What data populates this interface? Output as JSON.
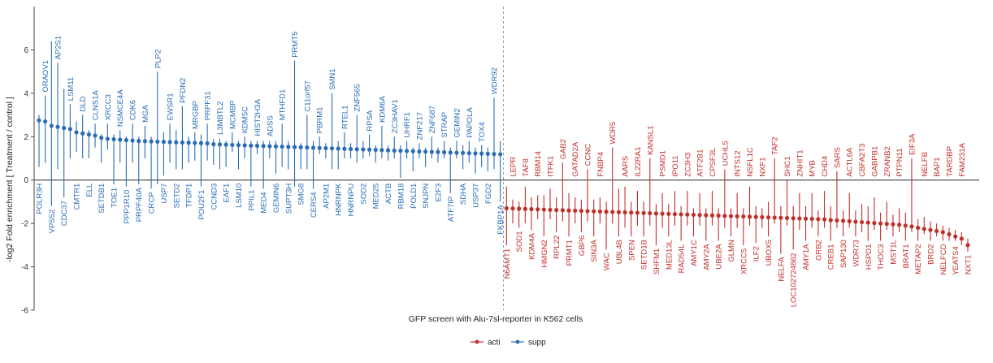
{
  "chart_data": {
    "type": "scatter",
    "xlabel": "GFP screen with Alu-7sl-reporter in K562 cells",
    "ylabel": "-log2 Fold enrichment [ Treatment / control ]",
    "ylim": [
      -6,
      8
    ],
    "yticks": [
      -6,
      -4,
      -2,
      0,
      2,
      4,
      6
    ],
    "grid": false,
    "legend_position": "bottom-center",
    "colors": {
      "acti": "#c0302b",
      "supp": "#2a6db5",
      "zero_line": "#555555",
      "divider": "#999999"
    },
    "series": [
      {
        "name": "supp",
        "points": [
          {
            "label": "POLR3H",
            "y": 2.75,
            "lo": 0.6,
            "hi": 3.0
          },
          {
            "label": "ORAOV1",
            "y": 2.7,
            "lo": 0.8,
            "hi": 3.9
          },
          {
            "label": "VPS52",
            "y": 2.5,
            "lo": -1.2,
            "hi": 6.4
          },
          {
            "label": "AP2S1",
            "y": 2.45,
            "lo": 0.5,
            "hi": 5.4
          },
          {
            "label": "CDC37",
            "y": 2.4,
            "lo": -0.8,
            "hi": 4.2
          },
          {
            "label": "LSM11",
            "y": 2.35,
            "lo": 1.0,
            "hi": 3.5
          },
          {
            "label": "CMTR1",
            "y": 2.2,
            "lo": 1.3,
            "hi": 2.7
          },
          {
            "label": "DLD",
            "y": 2.15,
            "lo": 1.0,
            "hi": 3.0
          },
          {
            "label": "ELL",
            "y": 2.1,
            "lo": 1.0,
            "hi": 2.3
          },
          {
            "label": "CLNS1A",
            "y": 2.05,
            "lo": 1.5,
            "hi": 2.6
          },
          {
            "label": "SETDB1",
            "y": 1.95,
            "lo": 0.8,
            "hi": 2.1
          },
          {
            "label": "XRCC3",
            "y": 1.9,
            "lo": 1.4,
            "hi": 2.6
          },
          {
            "label": "TOE1",
            "y": 1.88,
            "lo": -0.2,
            "hi": 2.1
          },
          {
            "label": "NSMCE4A",
            "y": 1.86,
            "lo": 0.8,
            "hi": 2.3
          },
          {
            "label": "PPP1R10",
            "y": 1.84,
            "lo": -0.3,
            "hi": 2.0
          },
          {
            "label": "CDK6",
            "y": 1.82,
            "lo": 0.8,
            "hi": 2.6
          },
          {
            "label": "PRPF40A",
            "y": 1.8,
            "lo": -0.2,
            "hi": 2.0
          },
          {
            "label": "MGA",
            "y": 1.79,
            "lo": 1.0,
            "hi": 2.5
          },
          {
            "label": "CRCP",
            "y": 1.78,
            "lo": -0.4,
            "hi": 2.0
          },
          {
            "label": "PLP2",
            "y": 1.77,
            "lo": -0.2,
            "hi": 5.0
          },
          {
            "label": "USP7",
            "y": 1.76,
            "lo": 0.2,
            "hi": 2.2
          },
          {
            "label": "EWSR1",
            "y": 1.75,
            "lo": 0.8,
            "hi": 2.6
          },
          {
            "label": "SETD2",
            "y": 1.74,
            "lo": 0.5,
            "hi": 2.3
          },
          {
            "label": "PFDN2",
            "y": 1.73,
            "lo": 0.5,
            "hi": 3.4
          },
          {
            "label": "TFDP1",
            "y": 1.72,
            "lo": 0.8,
            "hi": 2.0
          },
          {
            "label": "MRGBP",
            "y": 1.71,
            "lo": 0.9,
            "hi": 2.2
          },
          {
            "label": "POU2F1",
            "y": 1.7,
            "lo": -0.3,
            "hi": 2.1
          },
          {
            "label": "PRPF31",
            "y": 1.69,
            "lo": 0.9,
            "hi": 2.6
          },
          {
            "label": "CCND3",
            "y": 1.65,
            "lo": 0.7,
            "hi": 1.9
          },
          {
            "label": "L3MBTL2",
            "y": 1.64,
            "lo": 0.5,
            "hi": 1.9
          },
          {
            "label": "EAF1",
            "y": 1.63,
            "lo": 0.6,
            "hi": 1.8
          },
          {
            "label": "MCMBP",
            "y": 1.62,
            "lo": 1.3,
            "hi": 2.2
          },
          {
            "label": "LSM10",
            "y": 1.61,
            "lo": 0.5,
            "hi": 1.8
          },
          {
            "label": "KDM5C",
            "y": 1.6,
            "lo": 1.0,
            "hi": 2.0
          },
          {
            "label": "PPIL1",
            "y": 1.59,
            "lo": -0.3,
            "hi": 1.8
          },
          {
            "label": "HIST2H3A",
            "y": 1.58,
            "lo": 1.2,
            "hi": 1.8
          },
          {
            "label": "MED4",
            "y": 1.57,
            "lo": -0.4,
            "hi": 1.8
          },
          {
            "label": "ADSS",
            "y": 1.56,
            "lo": 1.0,
            "hi": 1.8
          },
          {
            "label": "GEMIN6",
            "y": 1.55,
            "lo": 0.3,
            "hi": 1.8
          },
          {
            "label": "MTHFD1",
            "y": 1.54,
            "lo": 0.6,
            "hi": 2.6
          },
          {
            "label": "SUPT3H",
            "y": 1.53,
            "lo": 0.5,
            "hi": 1.8
          },
          {
            "label": "PRMT5",
            "y": 1.52,
            "lo": -0.3,
            "hi": 5.5
          },
          {
            "label": "SMG8",
            "y": 1.51,
            "lo": 0.5,
            "hi": 1.7
          },
          {
            "label": "C11orf57",
            "y": 1.5,
            "lo": 0.5,
            "hi": 3.0
          },
          {
            "label": "CERS4",
            "y": 1.49,
            "lo": -0.4,
            "hi": 1.8
          },
          {
            "label": "PBRM1",
            "y": 1.48,
            "lo": 1.2,
            "hi": 2.0
          },
          {
            "label": "AP2M1",
            "y": 1.47,
            "lo": 1.0,
            "hi": 1.7
          },
          {
            "label": "SMN1",
            "y": 1.46,
            "lo": 0.5,
            "hi": 4.0
          },
          {
            "label": "HNRNPK",
            "y": 1.45,
            "lo": 0.5,
            "hi": 1.8
          },
          {
            "label": "RTEL1",
            "y": 1.44,
            "lo": 1.0,
            "hi": 2.2
          },
          {
            "label": "HNRNPU",
            "y": 1.43,
            "lo": 1.0,
            "hi": 1.7
          },
          {
            "label": "ZNF565",
            "y": 1.42,
            "lo": 0.8,
            "hi": 3.0
          },
          {
            "label": "SOD2",
            "y": 1.41,
            "lo": 1.0,
            "hi": 1.8
          },
          {
            "label": "RPSA",
            "y": 1.4,
            "lo": 1.1,
            "hi": 2.1
          },
          {
            "label": "MED25",
            "y": 1.39,
            "lo": 0.8,
            "hi": 1.6
          },
          {
            "label": "KDM6A",
            "y": 1.38,
            "lo": 1.0,
            "hi": 2.5
          },
          {
            "label": "ACTB",
            "y": 1.37,
            "lo": 0.9,
            "hi": 1.6
          },
          {
            "label": "ZC3HAV1",
            "y": 1.36,
            "lo": 1.0,
            "hi": 2.0
          },
          {
            "label": "RBM18",
            "y": 1.35,
            "lo": 0.1,
            "hi": 1.6
          },
          {
            "label": "UHRF1",
            "y": 1.34,
            "lo": 1.0,
            "hi": 1.8
          },
          {
            "label": "POLD1",
            "y": 1.33,
            "lo": 0.4,
            "hi": 1.5
          },
          {
            "label": "ZNF217",
            "y": 1.32,
            "lo": 1.0,
            "hi": 1.7
          },
          {
            "label": "SNJPN",
            "y": 1.31,
            "lo": 0.6,
            "hi": 1.5
          },
          {
            "label": "ZNF687",
            "y": 1.3,
            "lo": 1.0,
            "hi": 2.0
          },
          {
            "label": "E2F3",
            "y": 1.29,
            "lo": 0.8,
            "hi": 1.5
          },
          {
            "label": "STRAP",
            "y": 1.28,
            "lo": 1.0,
            "hi": 1.8
          },
          {
            "label": "ATF7IP",
            "y": 1.27,
            "lo": -0.6,
            "hi": 1.5
          },
          {
            "label": "GEMIN2",
            "y": 1.26,
            "lo": 1.0,
            "hi": 1.8
          },
          {
            "label": "SDHA",
            "y": 1.25,
            "lo": 0.5,
            "hi": 1.6
          },
          {
            "label": "PAPOLA",
            "y": 1.24,
            "lo": 0.8,
            "hi": 1.8
          },
          {
            "label": "USP37",
            "y": 1.23,
            "lo": 0.3,
            "hi": 1.5
          },
          {
            "label": "TOX4",
            "y": 1.22,
            "lo": 0.6,
            "hi": 1.6
          },
          {
            "label": "FGD2",
            "y": 1.21,
            "lo": 0.4,
            "hi": 1.5
          },
          {
            "label": "WDR92",
            "y": 1.2,
            "lo": 0.5,
            "hi": 3.8
          },
          {
            "label": "FKBP1A",
            "y": 1.19,
            "lo": -1.0,
            "hi": 1.8
          }
        ]
      },
      {
        "name": "acti",
        "points": [
          {
            "label": "N6AMT1",
            "y": -1.3,
            "lo": -3.0,
            "hi": -0.3
          },
          {
            "label": "LEPR",
            "y": -1.31,
            "lo": -2.0,
            "hi": -0.9
          },
          {
            "label": "SOD1",
            "y": -1.32,
            "lo": -2.2,
            "hi": -1.0
          },
          {
            "label": "TAF8",
            "y": -1.33,
            "lo": -2.0,
            "hi": -0.3
          },
          {
            "label": "KDM4A",
            "y": -1.34,
            "lo": -2.3,
            "hi": -0.8
          },
          {
            "label": "RBM14",
            "y": -1.35,
            "lo": -1.8,
            "hi": -0.7
          },
          {
            "label": "HMGN2",
            "y": -1.36,
            "lo": -2.6,
            "hi": -0.7
          },
          {
            "label": "ITFK1",
            "y": -1.37,
            "lo": -1.8,
            "hi": -0.4
          },
          {
            "label": "RPL22",
            "y": -1.38,
            "lo": -2.4,
            "hi": -0.8
          },
          {
            "label": "GAB2",
            "y": -1.39,
            "lo": -1.9,
            "hi": 0.8
          },
          {
            "label": "PRMT1",
            "y": -1.4,
            "lo": -2.6,
            "hi": -0.6
          },
          {
            "label": "GATAD2A",
            "y": -1.41,
            "lo": -2.0,
            "hi": -0.8
          },
          {
            "label": "GBP6",
            "y": -1.42,
            "lo": -2.4,
            "hi": -0.9
          },
          {
            "label": "CCNC",
            "y": -1.43,
            "lo": -1.9,
            "hi": 0.5
          },
          {
            "label": "SIN3A",
            "y": -1.44,
            "lo": -2.6,
            "hi": -0.9
          },
          {
            "label": "FNBP4",
            "y": -1.45,
            "lo": -2.0,
            "hi": -0.8
          },
          {
            "label": "WAC",
            "y": -1.46,
            "lo": -3.2,
            "hi": -1.0
          },
          {
            "label": "WDR5",
            "y": -1.47,
            "lo": -2.0,
            "hi": 1.5
          },
          {
            "label": "UBL4B",
            "y": -1.48,
            "lo": -2.6,
            "hi": -0.4
          },
          {
            "label": "AARS",
            "y": -1.49,
            "lo": -2.2,
            "hi": -0.3
          },
          {
            "label": "SPEN",
            "y": -1.5,
            "lo": -2.6,
            "hi": -1.0
          },
          {
            "label": "IL22RA1",
            "y": -1.51,
            "lo": -2.1,
            "hi": -0.5
          },
          {
            "label": "SETD1B",
            "y": -1.52,
            "lo": -2.6,
            "hi": -1.0
          },
          {
            "label": "KANSL1",
            "y": -1.53,
            "lo": -2.1,
            "hi": 1.0
          },
          {
            "label": "SHFM1",
            "y": -1.54,
            "lo": -3.0,
            "hi": -1.1
          },
          {
            "label": "PSMD1",
            "y": -1.55,
            "lo": -2.2,
            "hi": -0.6
          },
          {
            "label": "MED13L",
            "y": -1.56,
            "lo": -2.6,
            "hi": -1.1
          },
          {
            "label": "IPO11",
            "y": -1.57,
            "lo": -2.1,
            "hi": -0.5
          },
          {
            "label": "RAD54L",
            "y": -1.58,
            "lo": -2.8,
            "hi": -1.2
          },
          {
            "label": "ZC3H3",
            "y": -1.59,
            "lo": -2.1,
            "hi": -0.5
          },
          {
            "label": "AMY1C",
            "y": -1.6,
            "lo": -2.6,
            "hi": -1.3
          },
          {
            "label": "ATF2B1",
            "y": -1.61,
            "lo": -2.1,
            "hi": -0.6
          },
          {
            "label": "AMY2A",
            "y": -1.62,
            "lo": -2.8,
            "hi": -1.3
          },
          {
            "label": "CPSF3L",
            "y": -1.63,
            "lo": -2.1,
            "hi": -0.5
          },
          {
            "label": "UBE2A",
            "y": -1.64,
            "lo": -2.8,
            "hi": -1.3
          },
          {
            "label": "UCHL5",
            "y": -1.65,
            "lo": -2.2,
            "hi": 0.5
          },
          {
            "label": "GLMN",
            "y": -1.66,
            "lo": -2.6,
            "hi": -1.3
          },
          {
            "label": "INTS12",
            "y": -1.67,
            "lo": -2.2,
            "hi": -0.6
          },
          {
            "label": "XRCC5",
            "y": -1.68,
            "lo": -3.0,
            "hi": -1.3
          },
          {
            "label": "NSFL1C",
            "y": -1.69,
            "lo": -2.1,
            "hi": -0.3
          },
          {
            "label": "ILF2",
            "y": -1.7,
            "lo": -2.9,
            "hi": -1.2
          },
          {
            "label": "NXF1",
            "y": -1.71,
            "lo": -2.2,
            "hi": -1.3
          },
          {
            "label": "UBOX5",
            "y": -1.72,
            "lo": -2.6,
            "hi": -1.0
          },
          {
            "label": "TAF2",
            "y": -1.73,
            "lo": -2.0,
            "hi": 1.0
          },
          {
            "label": "NELFA",
            "y": -1.74,
            "lo": -3.4,
            "hi": -1.2
          },
          {
            "label": "SHC1",
            "y": -1.75,
            "lo": -2.1,
            "hi": 0.0
          },
          {
            "label": "LOC102724862",
            "y": -1.76,
            "lo": -3.2,
            "hi": -1.2
          },
          {
            "label": "ZNHIT1",
            "y": -1.77,
            "lo": -2.3,
            "hi": -0.6
          },
          {
            "label": "AMY1A",
            "y": -1.78,
            "lo": -2.8,
            "hi": -1.2
          },
          {
            "label": "MYB",
            "y": -1.79,
            "lo": -2.2,
            "hi": -0.6
          },
          {
            "label": "GRB2",
            "y": -1.8,
            "lo": -2.6,
            "hi": -1.4
          },
          {
            "label": "CHD4",
            "y": -1.81,
            "lo": -2.2,
            "hi": -0.5
          },
          {
            "label": "CREB1",
            "y": -1.85,
            "lo": -2.8,
            "hi": -1.2
          },
          {
            "label": "SARS",
            "y": -1.86,
            "lo": -2.2,
            "hi": 0.4
          },
          {
            "label": "SAP130",
            "y": -1.88,
            "lo": -2.6,
            "hi": -1.4
          },
          {
            "label": "ACTL6A",
            "y": -1.9,
            "lo": -2.2,
            "hi": -0.6
          },
          {
            "label": "WDR73",
            "y": -1.92,
            "lo": -2.6,
            "hi": -1.4
          },
          {
            "label": "CBFA2T3",
            "y": -1.94,
            "lo": -2.4,
            "hi": -1.1
          },
          {
            "label": "HSPD1",
            "y": -1.96,
            "lo": -2.8,
            "hi": -1.2
          },
          {
            "label": "GABPB1",
            "y": -1.98,
            "lo": -2.3,
            "hi": -0.8
          },
          {
            "label": "THOC3",
            "y": -2.0,
            "lo": -2.8,
            "hi": -1.5
          },
          {
            "label": "ZRANB2",
            "y": -2.02,
            "lo": -2.3,
            "hi": -1.0
          },
          {
            "label": "MST1L",
            "y": -2.04,
            "lo": -2.6,
            "hi": -1.6
          },
          {
            "label": "PTPN11",
            "y": -2.06,
            "lo": -2.4,
            "hi": -1.3
          },
          {
            "label": "BRAT1",
            "y": -2.1,
            "lo": -2.8,
            "hi": -1.5
          },
          {
            "label": "EIF3A",
            "y": -2.14,
            "lo": -2.4,
            "hi": 1.0
          },
          {
            "label": "METAP2",
            "y": -2.2,
            "lo": -2.8,
            "hi": -1.8
          },
          {
            "label": "NELFB",
            "y": -2.25,
            "lo": -2.5,
            "hi": -1.7
          },
          {
            "label": "BRD2",
            "y": -2.3,
            "lo": -2.8,
            "hi": -1.9
          },
          {
            "label": "BAP1",
            "y": -2.35,
            "lo": -2.6,
            "hi": -2.0
          },
          {
            "label": "NELFCD",
            "y": -2.4,
            "lo": -2.8,
            "hi": -2.1
          },
          {
            "label": "TARDBP",
            "y": -2.5,
            "lo": -2.8,
            "hi": -2.2
          },
          {
            "label": "YEATS4",
            "y": -2.6,
            "lo": -2.8,
            "hi": -2.3
          },
          {
            "label": "FAM231A",
            "y": -2.7,
            "lo": -3.0,
            "hi": -2.4
          },
          {
            "label": "NXT1",
            "y": -3.0,
            "lo": -3.3,
            "hi": -2.7
          }
        ]
      }
    ]
  }
}
